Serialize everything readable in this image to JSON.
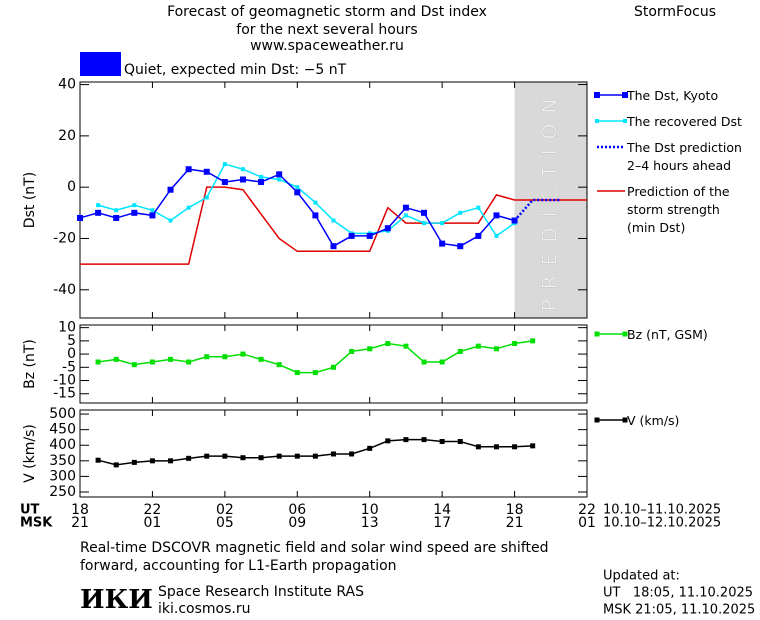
{
  "header": {
    "title": [
      "Forecast of geomagnetic storm and Dst index",
      "for the next several hours",
      "www.spaceweather.ru"
    ],
    "brand": "StormFocus"
  },
  "status": {
    "color": "#0000ff",
    "text": "Quiet, expected min Dst: −5 nT"
  },
  "chart_data": [
    {
      "type": "line",
      "ylabel": "Dst (nT)",
      "xlim": [
        0,
        28
      ],
      "ylim": [
        -51,
        41
      ],
      "yticks": [
        40,
        20,
        0,
        -20,
        -40
      ],
      "prediction": {
        "span": [
          24,
          28
        ],
        "label": "PREDICTION",
        "color": "#d9d9d9"
      },
      "series": [
        {
          "name": "The Dst, Kyoto",
          "color": "#0000ff",
          "marker": 6,
          "style": "solid",
          "x": [
            0,
            1,
            2,
            3,
            4,
            5,
            6,
            7,
            8,
            9,
            10,
            11,
            12,
            13,
            14,
            15,
            16,
            17,
            18,
            19,
            20,
            21,
            22,
            23,
            24
          ],
          "values": [
            -12,
            -10,
            -12,
            -10,
            -11,
            -1,
            7,
            6,
            2,
            3,
            2,
            5,
            -2,
            -11,
            -23,
            -19,
            -19,
            -16,
            -8,
            -10,
            -22,
            -23,
            -19,
            -11,
            -13
          ]
        },
        {
          "name": "The recovered Dst",
          "color": "#00e5ff",
          "marker": 4,
          "style": "solid",
          "x": [
            1,
            2,
            3,
            4,
            5,
            6,
            7,
            8,
            9,
            10,
            11,
            12,
            13,
            14,
            15,
            16,
            17,
            18,
            19,
            20,
            21,
            22,
            23,
            24
          ],
          "values": [
            -7,
            -9,
            -7,
            -9,
            -13,
            -8,
            -4,
            9,
            7,
            4,
            3,
            0,
            -6,
            -13,
            -18,
            -18,
            -17,
            -11,
            -14,
            -14,
            -10,
            -8,
            -19,
            -14
          ]
        },
        {
          "name": "The Dst prediction\n2–4 hours ahead",
          "color": "#0000ff",
          "style": "dotted",
          "x": [
            24,
            25,
            26.5
          ],
          "values": [
            -13,
            -5,
            -5
          ]
        },
        {
          "name": "Prediction of the\nstorm strength\n(min Dst)",
          "color": "#e00000",
          "style": "solid",
          "x": [
            0,
            6,
            7,
            8,
            9,
            11,
            12,
            16,
            17,
            18,
            22,
            23,
            24,
            28
          ],
          "values": [
            -30,
            -30,
            0,
            0,
            -1,
            -20,
            -25,
            -25,
            -8,
            -14,
            -14,
            -3,
            -5,
            -5
          ]
        }
      ]
    },
    {
      "type": "line",
      "ylabel": "Bz (nT)",
      "xlim": [
        0,
        28
      ],
      "ylim": [
        -18.5,
        11
      ],
      "yticks": [
        10,
        5,
        0,
        -5,
        -10,
        -15
      ],
      "series": [
        {
          "name": "Bz (nT, GSM)",
          "color": "#00e000",
          "marker": 5,
          "style": "solid",
          "x": [
            1,
            2,
            3,
            4,
            5,
            6,
            7,
            8,
            9,
            10,
            11,
            12,
            13,
            14,
            15,
            16,
            17,
            18,
            19,
            20,
            21,
            22,
            23,
            24,
            25
          ],
          "values": [
            -3,
            -2,
            -4,
            -3,
            -2,
            -3,
            -1,
            -1,
            0,
            -2,
            -4,
            -7,
            -7,
            -5,
            1,
            2,
            4,
            3,
            -3,
            -3,
            1,
            3,
            2,
            4,
            5
          ]
        }
      ]
    },
    {
      "type": "line",
      "ylabel": "V (km/s)",
      "xlim": [
        0,
        28
      ],
      "ylim": [
        234,
        513
      ],
      "yticks": [
        500,
        450,
        400,
        350,
        300,
        250
      ],
      "xticks": [
        {
          "value": 0,
          "label": "18"
        },
        {
          "value": 4,
          "label": "22"
        },
        {
          "value": 8,
          "label": "02"
        },
        {
          "value": 12,
          "label": "06"
        },
        {
          "value": 16,
          "label": "10"
        },
        {
          "value": 20,
          "label": "14"
        },
        {
          "value": 24,
          "label": "18"
        },
        {
          "value": 28,
          "label": "22"
        }
      ],
      "x2ticks": [
        {
          "value": 0,
          "label": "21"
        },
        {
          "value": 4,
          "label": "01"
        },
        {
          "value": 8,
          "label": "05"
        },
        {
          "value": 12,
          "label": "09"
        },
        {
          "value": 16,
          "label": "13"
        },
        {
          "value": 20,
          "label": "17"
        },
        {
          "value": 24,
          "label": "21"
        },
        {
          "value": 28,
          "label": "01"
        }
      ],
      "xlabel": "UT",
      "x2label": "MSK",
      "xrange": "10.10–11.10.2025",
      "x2range": "10.10–12.10.2025",
      "series": [
        {
          "name": "V (km/s)",
          "color": "#000000",
          "marker": 5,
          "style": "solid",
          "x": [
            1,
            2,
            3,
            4,
            5,
            6,
            7,
            8,
            9,
            10,
            11,
            12,
            13,
            14,
            15,
            16,
            17,
            18,
            19,
            20,
            21,
            22,
            23,
            24,
            25
          ],
          "values": [
            352,
            337,
            345,
            350,
            350,
            358,
            365,
            365,
            360,
            360,
            365,
            365,
            365,
            372,
            372,
            390,
            414,
            418,
            418,
            412,
            412,
            395,
            395,
            395,
            398
          ]
        }
      ]
    }
  ],
  "footer": {
    "note": [
      "Real-time DSCOVR magnetic field and solar wind speed are shifted",
      "forward, accounting for L1-Earth propagation"
    ],
    "logo": "ИКИ",
    "institute": "Space Research Institute RAS",
    "site": "iki.cosmos.ru",
    "updated": "Updated at:",
    "updated_ut": "UT   18:05, 11.10.2025",
    "updated_msk": "MSK 21:05, 11.10.2025"
  }
}
